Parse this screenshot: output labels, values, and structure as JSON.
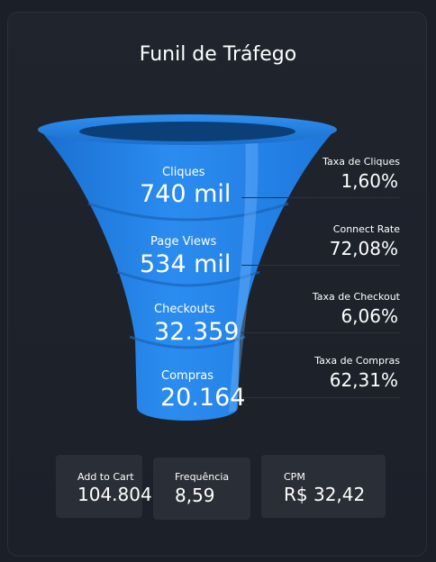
{
  "title": "Funil de Tráfego",
  "colors": {
    "background": "#1b1f27",
    "funnel_blue": "#2a86e6",
    "funnel_dark": "#0c4a8a",
    "kpi_card": "#2a2e36"
  },
  "stages": [
    {
      "label": "Cliques",
      "value": "740 mil"
    },
    {
      "label": "Page Views",
      "value": "534 mil"
    },
    {
      "label": "Checkouts",
      "value": "32.359"
    },
    {
      "label": "Compras",
      "value": "20.164"
    }
  ],
  "rates": [
    {
      "label": "Taxa de Cliques",
      "value": "1,60%"
    },
    {
      "label": "Connect Rate",
      "value": "72,08%"
    },
    {
      "label": "Taxa de Checkout",
      "value": "6,06%"
    },
    {
      "label": "Taxa de Compras",
      "value": "62,31%"
    }
  ],
  "kpis": [
    {
      "label": "Add to Cart",
      "value": "104.804"
    },
    {
      "label": "Frequência",
      "value": "8,59"
    },
    {
      "label": "CPM",
      "value": "R$ 32,42"
    }
  ]
}
